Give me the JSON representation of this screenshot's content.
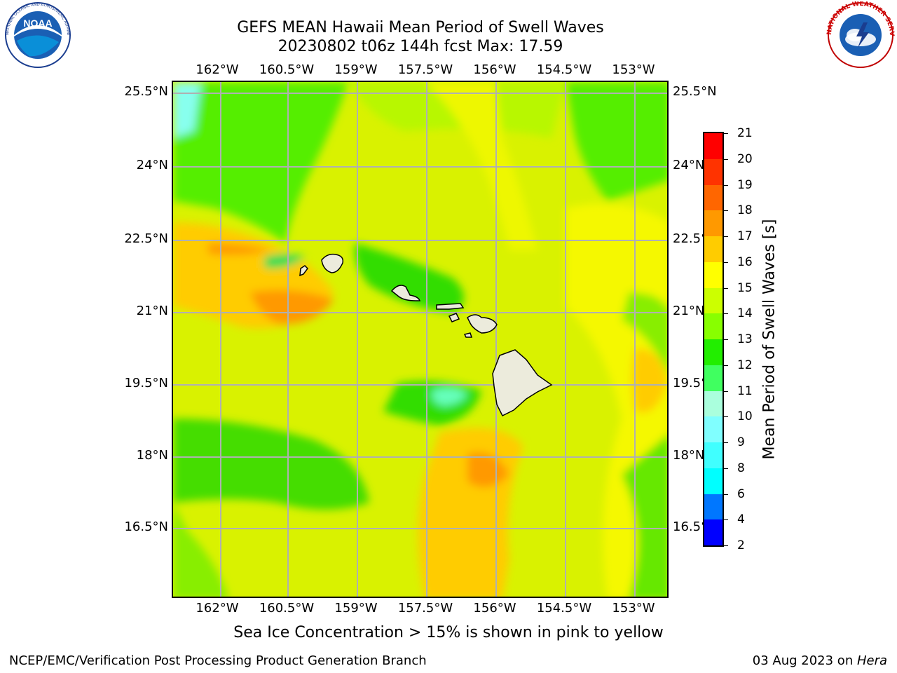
{
  "header": {
    "title_line1": "GEFS MEAN Hawaii Mean Period of Swell Waves",
    "title_line2": "20230802 t06z 144h fcst   Max: 17.59"
  },
  "logos": {
    "noaa": {
      "icon": "noaa-logo",
      "text": "NOAA",
      "ring_text": "NATIONAL OCEANIC AND ATMOSPHERIC ADMINISTRATION · U.S. DEPARTMENT OF COMMERCE"
    },
    "nws": {
      "icon": "nws-logo",
      "ring_text": "NATIONAL WEATHER SERVICE"
    }
  },
  "map": {
    "lon_labels": [
      "162°W",
      "160.5°W",
      "159°W",
      "157.5°W",
      "156°W",
      "154.5°W",
      "153°W"
    ],
    "lat_labels": [
      "25.5°N",
      "24°N",
      "22.5°N",
      "21°N",
      "19.5°N",
      "18°N",
      "16.5°N"
    ],
    "lon_range": [
      -163.0,
      -152.3
    ],
    "lat_range": [
      15.2,
      25.75
    ],
    "gridlines": true,
    "ocean_fill_color": "#d9f200",
    "land_color": "#ecebdc"
  },
  "colorbar": {
    "title": "Mean Period of Swell Waves [s]",
    "levels": [
      2,
      4,
      6,
      8,
      9,
      10,
      11,
      12,
      13,
      14,
      15,
      16,
      17,
      18,
      19,
      20,
      21
    ],
    "labels": [
      "2",
      "4",
      "6",
      "8",
      "9",
      "10",
      "11",
      "12",
      "13",
      "14",
      "15",
      "16",
      "17",
      "18",
      "19",
      "20",
      "21"
    ],
    "colors": [
      "#0000ff",
      "#0077ff",
      "#00ffff",
      "#40ffff",
      "#80ffff",
      "#aaffdd",
      "#40ff60",
      "#22ee00",
      "#88ff00",
      "#ccff00",
      "#ffff00",
      "#ffcc00",
      "#ff9900",
      "#ff6600",
      "#ff3300",
      "#ff0000"
    ]
  },
  "subtitle": "Sea Ice Concentration > 15% is shown in pink to yellow",
  "footer": {
    "left": "NCEP/EMC/Verification Post Processing Product Generation Branch",
    "right_prefix": "03 Aug 2023 on ",
    "right_host": "Hera"
  }
}
